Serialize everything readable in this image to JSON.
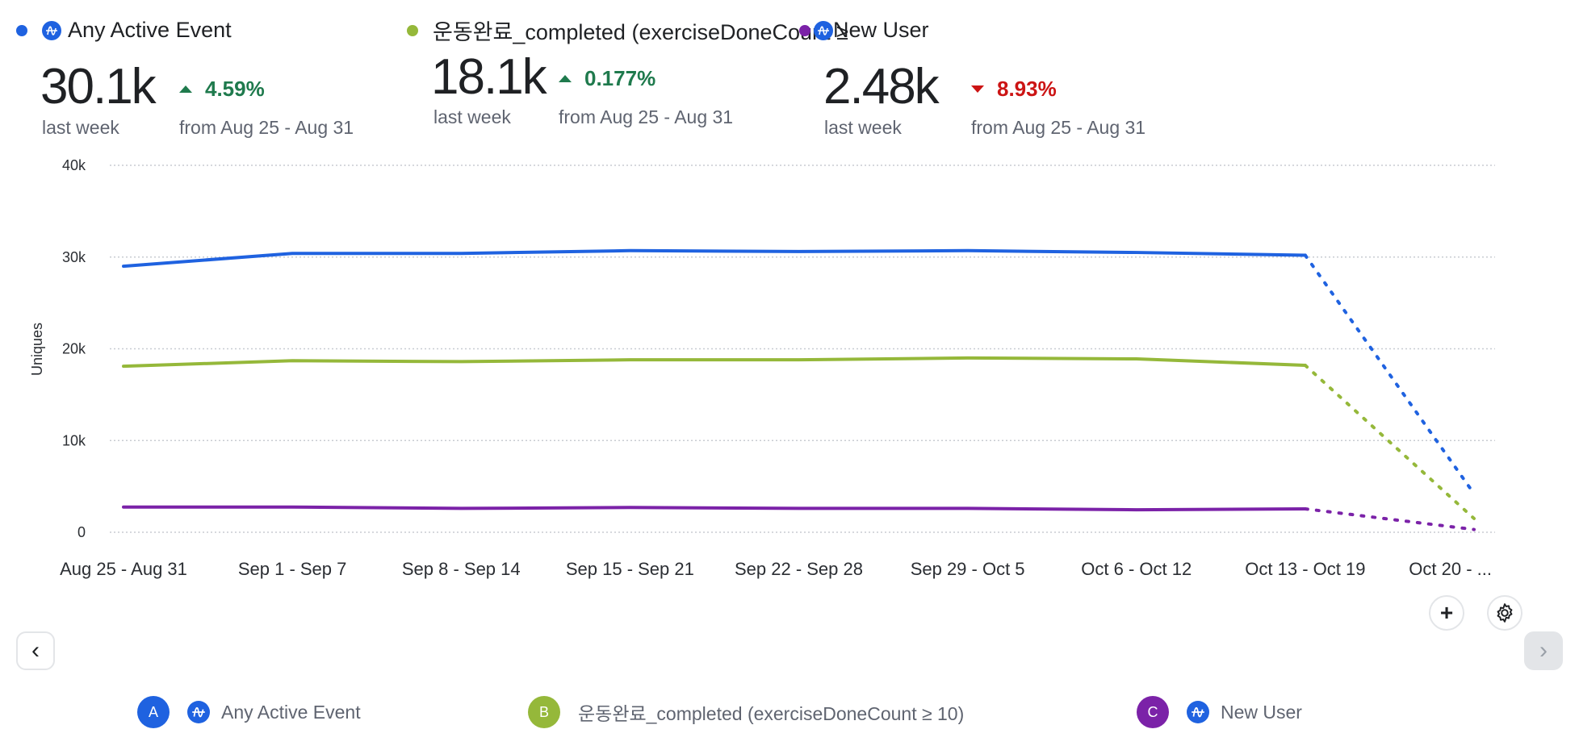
{
  "metrics": [
    {
      "label": "Any Active Event",
      "color": "#1f62e0",
      "has_amp_icon": true,
      "value": "30.1k",
      "period": "last week",
      "delta": "4.59%",
      "direction": "up",
      "comparison": "from Aug 25 - Aug 31"
    },
    {
      "label": "운동완료_completed (exerciseDoneCount ≥",
      "color": "#95b83a",
      "has_amp_icon": false,
      "value": "18.1k",
      "period": "last week",
      "delta": "0.177%",
      "direction": "up",
      "comparison": "from Aug 25 - Aug 31"
    },
    {
      "label": "New User",
      "color": "#7b22a8",
      "has_amp_icon": true,
      "value": "2.48k",
      "period": "last week",
      "delta": "8.93%",
      "direction": "down",
      "comparison": "from Aug 25 - Aug 31"
    }
  ],
  "colors": {
    "up": "#1f7a4d",
    "down": "#cc1414",
    "amp_icon": "#1f62e0",
    "grid": "#c8ccd2"
  },
  "chart_data": {
    "type": "line",
    "ylabel": "Uniques",
    "xlabel": "",
    "ylim": [
      0,
      40000
    ],
    "yticks": [
      {
        "v": 0,
        "label": "0"
      },
      {
        "v": 10000,
        "label": "10k"
      },
      {
        "v": 20000,
        "label": "20k"
      },
      {
        "v": 30000,
        "label": "30k"
      },
      {
        "v": 40000,
        "label": "40k"
      }
    ],
    "grid": true,
    "categories": [
      "Aug 25 - Aug 31",
      "Sep 1 - Sep 7",
      "Sep 8 - Sep 14",
      "Sep 15 - Sep 21",
      "Sep 22 - Sep 28",
      "Sep 29 - Oct 5",
      "Oct 6 - Oct 12",
      "Oct 13 - Oct 19",
      "Oct 20 - ..."
    ],
    "incomplete_from_index": 7,
    "series": [
      {
        "name": "Any Active Event",
        "key": "A",
        "color": "#1f62e0",
        "values": [
          29000,
          30400,
          30400,
          30700,
          30600,
          30700,
          30500,
          30200,
          4200
        ]
      },
      {
        "name": "운동완료_completed (exerciseDoneCount ≥ 10)",
        "key": "B",
        "color": "#95b83a",
        "values": [
          18100,
          18700,
          18600,
          18800,
          18800,
          19000,
          18900,
          18200,
          1500
        ]
      },
      {
        "name": "New User",
        "key": "C",
        "color": "#7b22a8",
        "values": [
          2750,
          2750,
          2600,
          2700,
          2600,
          2600,
          2450,
          2550,
          300
        ]
      }
    ]
  },
  "legend": [
    {
      "badge": "A",
      "label": "Any Active Event",
      "color": "#1f62e0",
      "has_amp_icon": true
    },
    {
      "badge": "B",
      "label": "운동완료_completed (exerciseDoneCount ≥ 10)",
      "color": "#95b83a",
      "has_amp_icon": false
    },
    {
      "badge": "C",
      "label": "New User",
      "color": "#7b22a8",
      "has_amp_icon": true
    }
  ],
  "controls": {
    "add_icon": "+",
    "prev_icon": "‹",
    "next_icon": "›"
  }
}
